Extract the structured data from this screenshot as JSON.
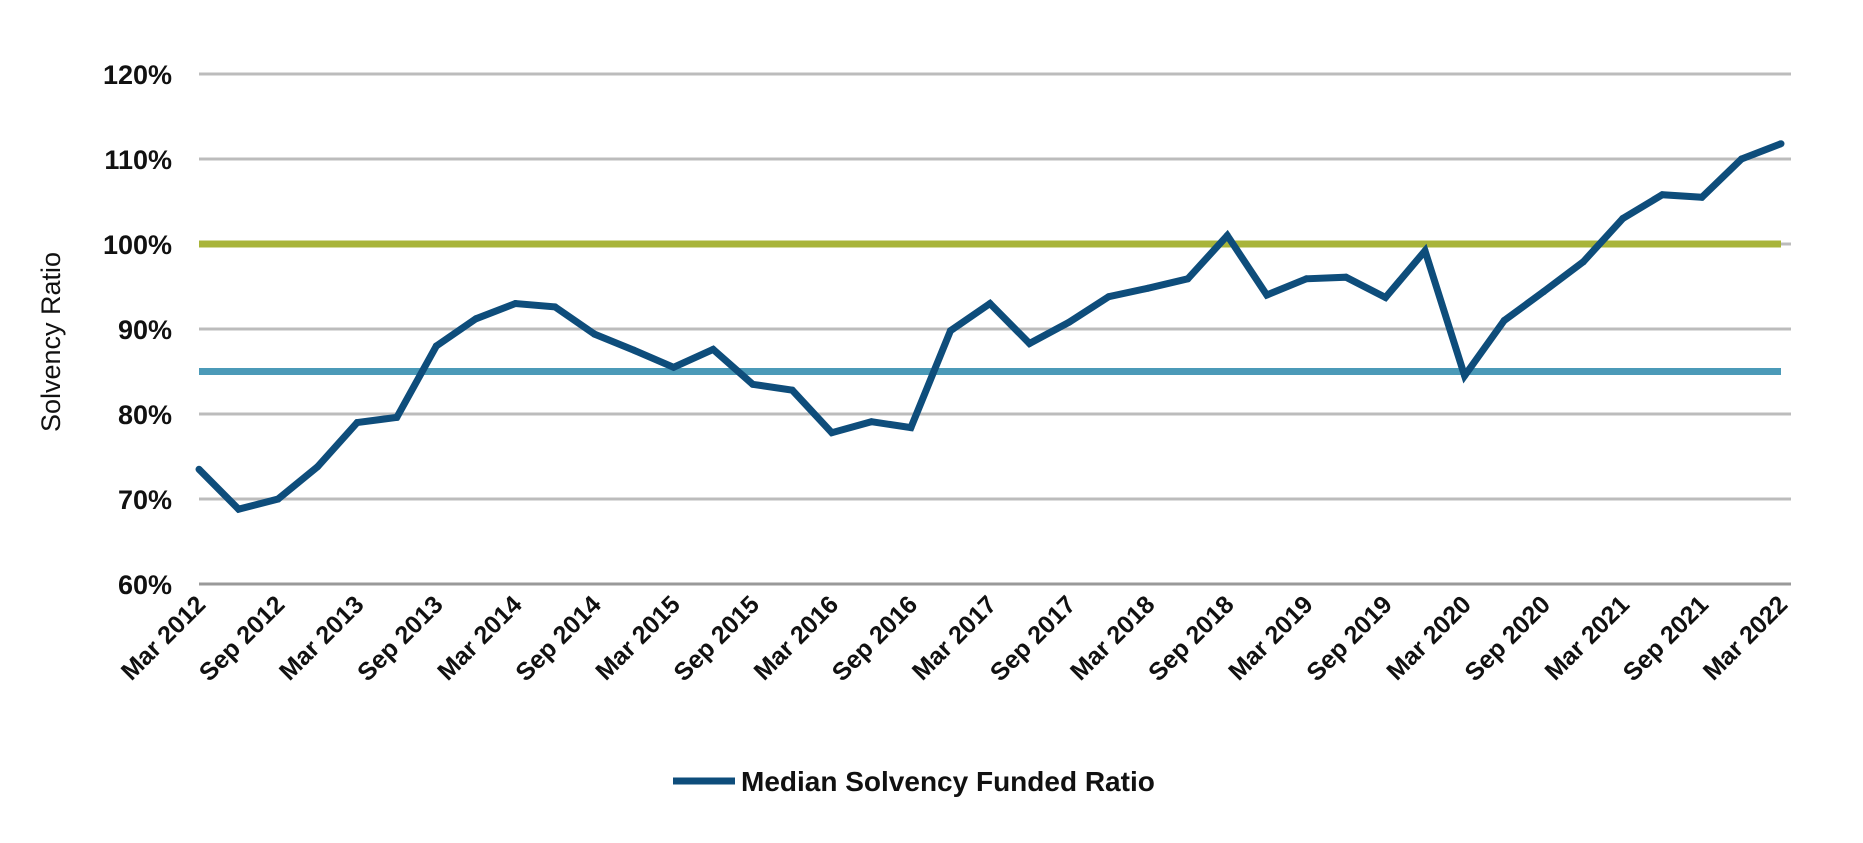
{
  "chart_data": {
    "type": "line",
    "title": "",
    "xlabel": "",
    "ylabel": "Solvency Ratio",
    "ylim": [
      60,
      120
    ],
    "yticks": [
      "60%",
      "70%",
      "80%",
      "90%",
      "100%",
      "110%",
      "120%"
    ],
    "ytick_values": [
      60,
      70,
      80,
      90,
      100,
      110,
      120
    ],
    "x_tick_labels": [
      "Mar 2012",
      "Sep 2012",
      "Mar 2013",
      "Sep 2013",
      "Mar 2014",
      "Sep 2014",
      "Mar 2015",
      "Sep 2015",
      "Mar 2016",
      "Sep 2016",
      "Mar 2017",
      "Sep 2017",
      "Mar 2018",
      "Sep 2018",
      "Mar 2019",
      "Sep 2019",
      "Mar 2020",
      "Sep 2020",
      "Mar 2021",
      "Sep 2021",
      "Mar 2022"
    ],
    "x": [
      "Mar 2012",
      "Jun 2012",
      "Sep 2012",
      "Dec 2012",
      "Mar 2013",
      "Jun 2013",
      "Sep 2013",
      "Dec 2013",
      "Mar 2014",
      "Jun 2014",
      "Sep 2014",
      "Dec 2014",
      "Mar 2015",
      "Jun 2015",
      "Sep 2015",
      "Dec 2015",
      "Mar 2016",
      "Jun 2016",
      "Sep 2016",
      "Dec 2016",
      "Mar 2017",
      "Jun 2017",
      "Sep 2017",
      "Dec 2017",
      "Mar 2018",
      "Jun 2018",
      "Sep 2018",
      "Dec 2018",
      "Mar 2019",
      "Jun 2019",
      "Sep 2019",
      "Dec 2019",
      "Mar 2020",
      "Jun 2020",
      "Sep 2020",
      "Dec 2020",
      "Mar 2021",
      "Jun 2021",
      "Sep 2021",
      "Dec 2021",
      "Mar 2022"
    ],
    "series": [
      {
        "name": "Median Solvency Funded Ratio",
        "color": "#0e4d7b",
        "values": [
          73.5,
          68.8,
          70.0,
          73.8,
          79.0,
          79.6,
          88.0,
          91.2,
          93.0,
          92.6,
          89.4,
          87.5,
          85.5,
          87.6,
          83.5,
          82.8,
          77.8,
          79.1,
          78.4,
          89.8,
          93.0,
          88.3,
          90.8,
          93.8,
          94.8,
          95.9,
          101.0,
          94.0,
          95.9,
          96.1,
          93.7,
          99.2,
          84.5,
          91.0,
          94.4,
          97.9,
          103.0,
          105.8,
          105.5,
          110.0,
          111.8
        ]
      }
    ],
    "reference_lines": [
      {
        "value": 100,
        "color": "#a8b43a"
      },
      {
        "value": 85,
        "color": "#4b9ab8"
      }
    ],
    "grid": true,
    "legend": "bottom-center"
  },
  "colors": {
    "grid": "#bcbcbc",
    "axis": "#999999",
    "text": "#111111"
  }
}
